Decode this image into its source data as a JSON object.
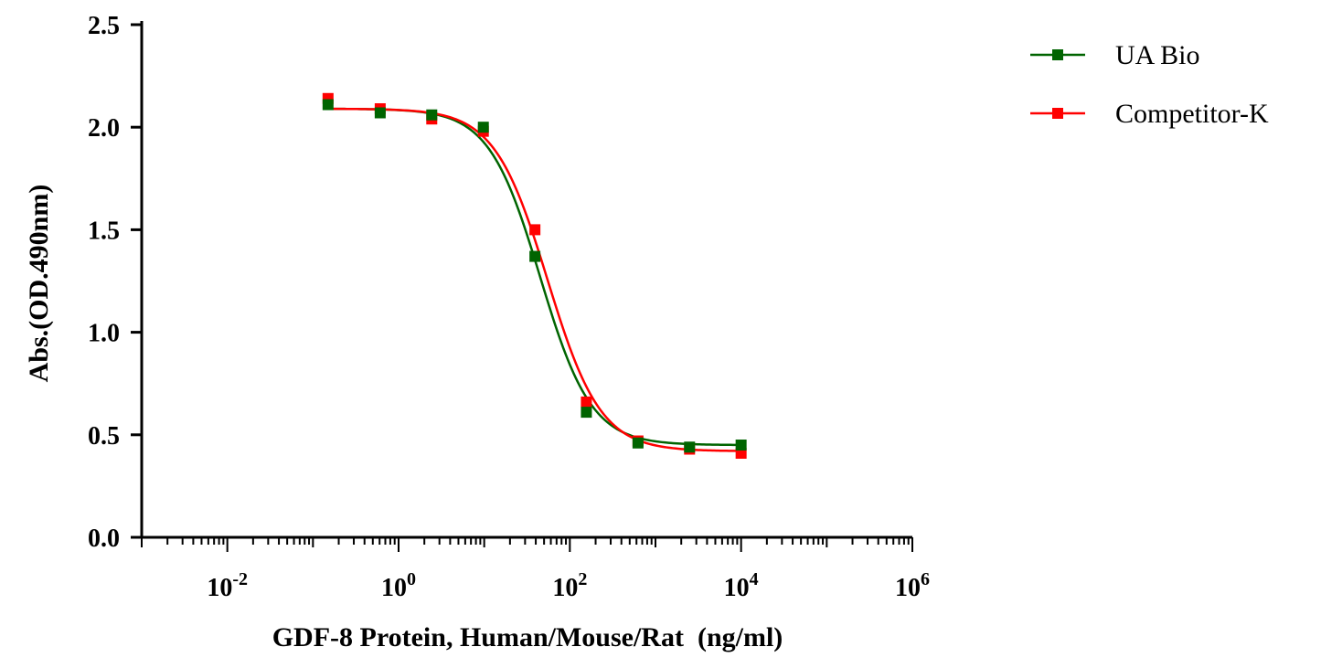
{
  "chart_data": {
    "type": "scatter",
    "title": "",
    "xlabel": "GDF-8 Protein, Human/Mouse/Rat  (ng/ml)",
    "ylabel": "Abs.(OD.490nm)",
    "xscale": "log",
    "xlim": [
      0.001,
      1000000
    ],
    "ylim": [
      0,
      2.5
    ],
    "y_ticks": [
      "0.0",
      "0.5",
      "1.0",
      "1.5",
      "2.0",
      "2.5"
    ],
    "x_ticks": [
      {
        "base": "10",
        "exp": "-2"
      },
      {
        "base": "10",
        "exp": "0"
      },
      {
        "base": "10",
        "exp": "2"
      },
      {
        "base": "10",
        "exp": "4"
      },
      {
        "base": "10",
        "exp": "6"
      }
    ],
    "grid": false,
    "legend_position": "top-right",
    "series": [
      {
        "name": "UA Bio",
        "color": "#006400",
        "marker": "square",
        "x": [
          0.15,
          0.61,
          2.44,
          9.77,
          39.1,
          156,
          625,
          2500,
          10000
        ],
        "y": [
          2.11,
          2.07,
          2.06,
          2.0,
          1.37,
          0.61,
          0.46,
          0.44,
          0.45
        ],
        "fit": {
          "top": 2.09,
          "bottom": 0.45,
          "ec50": 45,
          "hill": 1.45
        }
      },
      {
        "name": "Competitor-K",
        "color": "#ff0000",
        "marker": "square",
        "x": [
          0.15,
          0.61,
          2.44,
          9.77,
          39.1,
          156,
          625,
          2500,
          10000
        ],
        "y": [
          2.14,
          2.09,
          2.04,
          1.98,
          1.5,
          0.66,
          0.47,
          0.43,
          0.41
        ],
        "fit": {
          "top": 2.09,
          "bottom": 0.42,
          "ec50": 55,
          "hill": 1.4
        }
      }
    ]
  }
}
